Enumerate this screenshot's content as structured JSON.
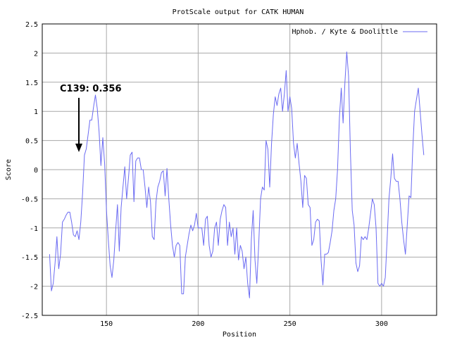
{
  "chart_data": {
    "type": "line",
    "title": "ProtScale output for CATK HUMAN",
    "xlabel": "Position",
    "ylabel": "Score",
    "xlim": [
      115,
      330
    ],
    "ylim": [
      -2.5,
      2.5
    ],
    "x_ticks": [
      150,
      200,
      250,
      300
    ],
    "y_ticks": [
      -2.5,
      -2,
      -1.5,
      -1,
      -0.5,
      0,
      0.5,
      1,
      1.5,
      2,
      2.5
    ],
    "x_tick_labels": [
      "150",
      "200",
      "250",
      "300"
    ],
    "y_tick_labels": [
      "-2.5",
      "-2",
      "-1.5",
      "-1",
      "-0.5",
      "0",
      "0.5",
      "1",
      "1.5",
      "2",
      "2.5"
    ],
    "grid": true,
    "legend_position": "top-right",
    "series": [
      {
        "name": "Hphob. / Kyte & Doolittle",
        "color": "#6b6bf2",
        "points": [
          [
            119,
            -1.45
          ],
          [
            120,
            -2.08
          ],
          [
            121,
            -1.95
          ],
          [
            122,
            -1.6
          ],
          [
            123,
            -1.15
          ],
          [
            124,
            -1.7
          ],
          [
            125,
            -1.45
          ],
          [
            126,
            -0.9
          ],
          [
            127,
            -0.85
          ],
          [
            128,
            -0.78
          ],
          [
            129,
            -0.73
          ],
          [
            130,
            -0.73
          ],
          [
            131,
            -0.9
          ],
          [
            132,
            -1.12
          ],
          [
            133,
            -1.15
          ],
          [
            134,
            -1.05
          ],
          [
            135,
            -1.2
          ],
          [
            136,
            -0.9
          ],
          [
            137,
            -0.4
          ],
          [
            138,
            0.25
          ],
          [
            139,
            0.356
          ],
          [
            140,
            0.6
          ],
          [
            141,
            0.85
          ],
          [
            142,
            0.85
          ],
          [
            143,
            1.08
          ],
          [
            144,
            1.28
          ],
          [
            145,
            1.05
          ],
          [
            146,
            0.65
          ],
          [
            147,
            0.07
          ],
          [
            148,
            0.55
          ],
          [
            149,
            0.1
          ],
          [
            150,
            -0.7
          ],
          [
            151,
            -1.2
          ],
          [
            152,
            -1.65
          ],
          [
            153,
            -1.85
          ],
          [
            154,
            -1.55
          ],
          [
            155,
            -1.05
          ],
          [
            156,
            -0.6
          ],
          [
            157,
            -1.4
          ],
          [
            158,
            -0.65
          ],
          [
            159,
            -0.3
          ],
          [
            160,
            0.05
          ],
          [
            161,
            -0.5
          ],
          [
            162,
            -0.15
          ],
          [
            163,
            0.25
          ],
          [
            164,
            0.3
          ],
          [
            165,
            -0.55
          ],
          [
            166,
            0.15
          ],
          [
            167,
            0.2
          ],
          [
            168,
            0.2
          ],
          [
            169,
            0.0
          ],
          [
            170,
            0.0
          ],
          [
            171,
            -0.3
          ],
          [
            172,
            -0.65
          ],
          [
            173,
            -0.3
          ],
          [
            174,
            -0.55
          ],
          [
            175,
            -1.15
          ],
          [
            176,
            -1.2
          ],
          [
            177,
            -0.55
          ],
          [
            178,
            -0.3
          ],
          [
            179,
            -0.2
          ],
          [
            180,
            -0.05
          ],
          [
            181,
            -0.02
          ],
          [
            182,
            -0.45
          ],
          [
            183,
            0.02
          ],
          [
            184,
            -0.5
          ],
          [
            185,
            -0.95
          ],
          [
            186,
            -1.3
          ],
          [
            187,
            -1.5
          ],
          [
            188,
            -1.3
          ],
          [
            189,
            -1.25
          ],
          [
            190,
            -1.3
          ],
          [
            191,
            -2.13
          ],
          [
            192,
            -2.13
          ],
          [
            193,
            -1.5
          ],
          [
            194,
            -1.3
          ],
          [
            195,
            -1.1
          ],
          [
            196,
            -0.95
          ],
          [
            197,
            -1.05
          ],
          [
            198,
            -0.95
          ],
          [
            199,
            -0.75
          ],
          [
            200,
            -1.0
          ],
          [
            201,
            -1.0
          ],
          [
            202,
            -1.0
          ],
          [
            203,
            -1.3
          ],
          [
            204,
            -0.85
          ],
          [
            205,
            -0.8
          ],
          [
            206,
            -1.3
          ],
          [
            207,
            -1.5
          ],
          [
            208,
            -1.4
          ],
          [
            209,
            -1.0
          ],
          [
            210,
            -0.9
          ],
          [
            211,
            -1.3
          ],
          [
            212,
            -0.85
          ],
          [
            213,
            -0.7
          ],
          [
            214,
            -0.6
          ],
          [
            215,
            -0.65
          ],
          [
            216,
            -1.3
          ],
          [
            217,
            -0.9
          ],
          [
            218,
            -1.15
          ],
          [
            219,
            -1.0
          ],
          [
            220,
            -1.45
          ],
          [
            221,
            -1.0
          ],
          [
            222,
            -1.55
          ],
          [
            223,
            -1.3
          ],
          [
            224,
            -1.4
          ],
          [
            225,
            -1.7
          ],
          [
            226,
            -1.5
          ],
          [
            227,
            -1.95
          ],
          [
            228,
            -2.2
          ],
          [
            229,
            -1.2
          ],
          [
            230,
            -0.7
          ],
          [
            231,
            -1.55
          ],
          [
            232,
            -1.95
          ],
          [
            233,
            -1.3
          ],
          [
            234,
            -0.5
          ],
          [
            235,
            -0.3
          ],
          [
            236,
            -0.35
          ],
          [
            237,
            0.5
          ],
          [
            238,
            0.35
          ],
          [
            239,
            -0.3
          ],
          [
            240,
            0.45
          ],
          [
            241,
            0.95
          ],
          [
            242,
            1.25
          ],
          [
            243,
            1.1
          ],
          [
            244,
            1.3
          ],
          [
            245,
            1.4
          ],
          [
            246,
            1.0
          ],
          [
            247,
            1.3
          ],
          [
            248,
            1.7
          ],
          [
            249,
            1.0
          ],
          [
            250,
            1.25
          ],
          [
            251,
            1.05
          ],
          [
            252,
            0.45
          ],
          [
            253,
            0.2
          ],
          [
            254,
            0.45
          ],
          [
            255,
            0.1
          ],
          [
            256,
            -0.2
          ],
          [
            257,
            -0.65
          ],
          [
            258,
            -0.1
          ],
          [
            259,
            -0.15
          ],
          [
            260,
            -0.6
          ],
          [
            261,
            -0.65
          ],
          [
            262,
            -1.3
          ],
          [
            263,
            -1.2
          ],
          [
            264,
            -0.9
          ],
          [
            265,
            -0.85
          ],
          [
            266,
            -0.88
          ],
          [
            267,
            -1.55
          ],
          [
            268,
            -1.98
          ],
          [
            269,
            -1.45
          ],
          [
            270,
            -1.45
          ],
          [
            271,
            -1.42
          ],
          [
            272,
            -1.25
          ],
          [
            273,
            -1.05
          ],
          [
            274,
            -0.7
          ],
          [
            275,
            -0.5
          ],
          [
            276,
            0.0
          ],
          [
            277,
            0.9
          ],
          [
            278,
            1.4
          ],
          [
            279,
            0.8
          ],
          [
            280,
            1.5
          ],
          [
            281,
            2.02
          ],
          [
            282,
            1.6
          ],
          [
            283,
            0.3
          ],
          [
            284,
            -0.7
          ],
          [
            285,
            -0.95
          ],
          [
            286,
            -1.6
          ],
          [
            287,
            -1.75
          ],
          [
            288,
            -1.65
          ],
          [
            289,
            -1.15
          ],
          [
            290,
            -1.2
          ],
          [
            291,
            -1.15
          ],
          [
            292,
            -1.2
          ],
          [
            293,
            -1.0
          ],
          [
            294,
            -0.75
          ],
          [
            295,
            -0.5
          ],
          [
            296,
            -0.6
          ],
          [
            297,
            -1.0
          ],
          [
            298,
            -1.95
          ],
          [
            299,
            -2.0
          ],
          [
            300,
            -1.95
          ],
          [
            301,
            -2.0
          ],
          [
            302,
            -1.85
          ],
          [
            303,
            -1.2
          ],
          [
            304,
            -0.5
          ],
          [
            305,
            -0.15
          ],
          [
            306,
            0.27
          ],
          [
            307,
            -0.15
          ],
          [
            308,
            -0.2
          ],
          [
            309,
            -0.2
          ],
          [
            310,
            -0.5
          ],
          [
            311,
            -0.9
          ],
          [
            312,
            -1.2
          ],
          [
            313,
            -1.45
          ],
          [
            314,
            -0.95
          ],
          [
            315,
            -0.45
          ],
          [
            316,
            -0.48
          ],
          [
            317,
            0.35
          ],
          [
            318,
            1.0
          ],
          [
            319,
            1.2
          ],
          [
            320,
            1.4
          ],
          [
            321,
            1.0
          ],
          [
            322,
            0.6
          ],
          [
            323,
            0.25
          ]
        ]
      }
    ],
    "annotations": [
      {
        "text": "C139: 0.356",
        "x": 139,
        "y": 0.356
      }
    ]
  }
}
